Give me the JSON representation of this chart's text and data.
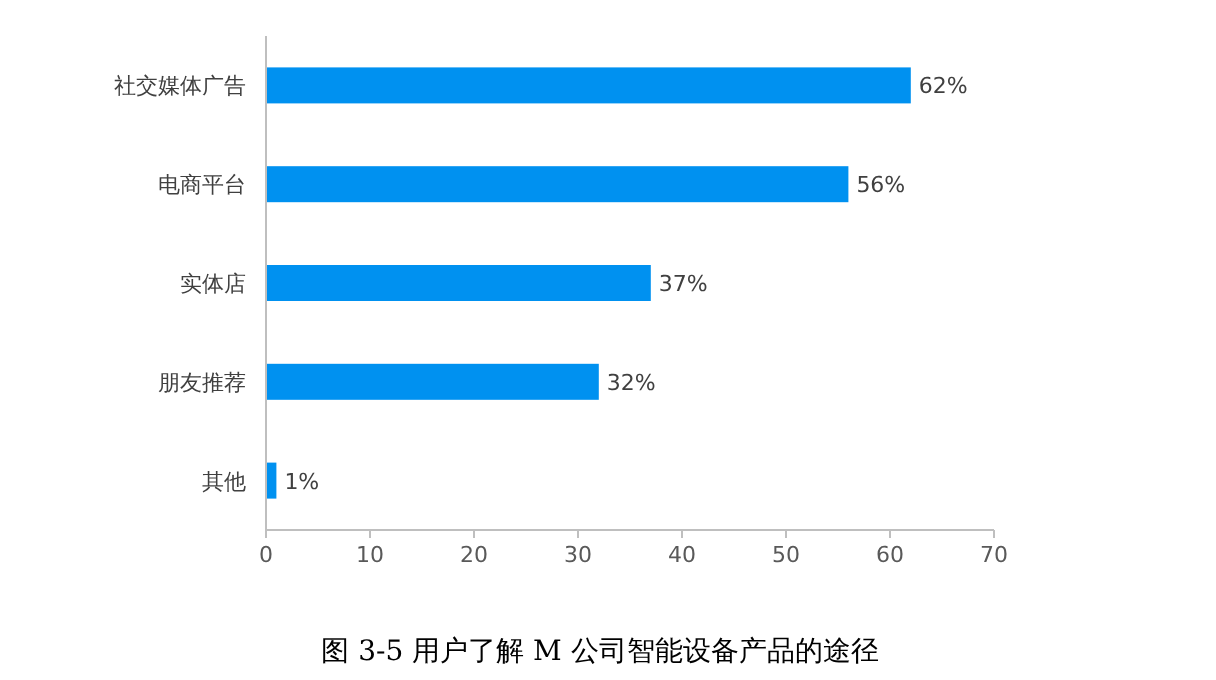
{
  "chart_data": {
    "type": "bar",
    "orientation": "horizontal",
    "categories": [
      "社交媒体广告",
      "电商平台",
      "实体店",
      "朋友推荐",
      "其他"
    ],
    "values": [
      62,
      56,
      37,
      32,
      1
    ],
    "value_labels": [
      "62%",
      "56%",
      "37%",
      "32%",
      "1%"
    ],
    "color": "#0091f0",
    "xlim": [
      0,
      70
    ],
    "xticks": [
      0,
      10,
      20,
      30,
      40,
      50,
      60,
      70
    ],
    "annotations": [
      "图 3-5 用户了解 M 公司智能设备产品的途径"
    ]
  }
}
